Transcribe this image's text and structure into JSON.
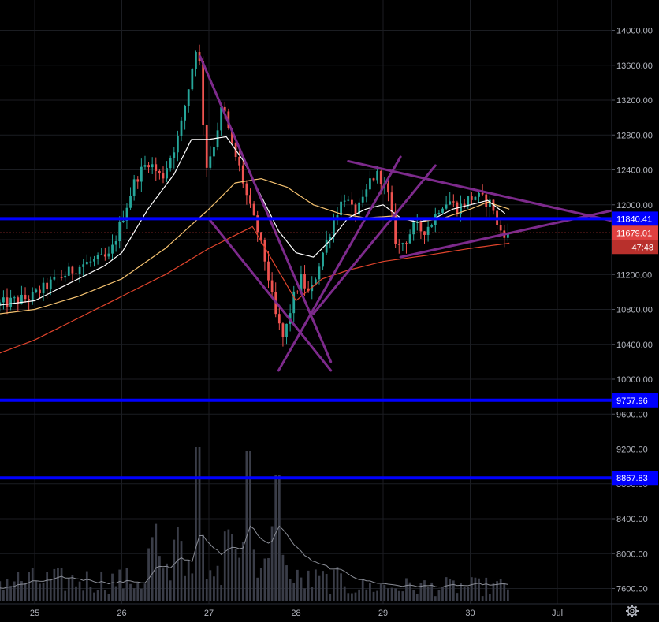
{
  "colors": {
    "background": "#000000",
    "grid": "#1b1d22",
    "candle_up": "#26a69a",
    "candle_down": "#ef5350",
    "sma_fast": "#ffffff",
    "sma_mid": "#f5c270",
    "sma_slow": "#e0442c",
    "hline": "#0000ff",
    "trend": "#7d2a8c",
    "volume": "#3a3d48",
    "volume_ma": "#8a8d96",
    "current_price_tag": "#e04040",
    "countdown_tag": "#b8302c"
  },
  "chart_data": {
    "type": "candlestick",
    "ylim": [
      7500,
      14300
    ],
    "y_ticks": [
      "7600.00",
      "8000.00",
      "8400.00",
      "8800.00",
      "9200.00",
      "9600.00",
      "10000.00",
      "10400.00",
      "10800.00",
      "11200.00",
      "11600.00",
      "12000.00",
      "12400.00",
      "12800.00",
      "13200.00",
      "13600.00",
      "14000.00"
    ],
    "x_ticks": [
      {
        "label": "25",
        "day": 25
      },
      {
        "label": "26",
        "day": 26
      },
      {
        "label": "27",
        "day": 27
      },
      {
        "label": "28",
        "day": 28
      },
      {
        "label": "29",
        "day": 29
      },
      {
        "label": "30",
        "day": 30
      },
      {
        "label": "Jul",
        "day": 31
      }
    ],
    "price_path": [
      [
        24.6,
        10850
      ],
      [
        25.0,
        10940
      ],
      [
        25.3,
        11150
      ],
      [
        25.6,
        11320
      ],
      [
        25.9,
        11400
      ],
      [
        26.0,
        11700
      ],
      [
        26.2,
        12300
      ],
      [
        26.35,
        12500
      ],
      [
        26.5,
        12300
      ],
      [
        26.6,
        12550
      ],
      [
        26.7,
        12800
      ],
      [
        26.8,
        13300
      ],
      [
        26.9,
        13850
      ],
      [
        26.95,
        13500
      ],
      [
        27.0,
        12400
      ],
      [
        27.1,
        12700
      ],
      [
        27.2,
        13150
      ],
      [
        27.3,
        12700
      ],
      [
        27.4,
        12400
      ],
      [
        27.5,
        12000
      ],
      [
        27.6,
        11700
      ],
      [
        27.7,
        11300
      ],
      [
        27.8,
        10750
      ],
      [
        27.9,
        10450
      ],
      [
        28.0,
        10900
      ],
      [
        28.1,
        11150
      ],
      [
        28.2,
        10950
      ],
      [
        28.3,
        11300
      ],
      [
        28.4,
        11600
      ],
      [
        28.5,
        11900
      ],
      [
        28.6,
        12100
      ],
      [
        28.7,
        11900
      ],
      [
        28.8,
        12000
      ],
      [
        28.9,
        12300
      ],
      [
        29.0,
        12350
      ],
      [
        29.1,
        12100
      ],
      [
        29.2,
        11500
      ],
      [
        29.3,
        11600
      ],
      [
        29.4,
        11750
      ],
      [
        29.5,
        11700
      ],
      [
        29.6,
        11800
      ],
      [
        29.7,
        12000
      ],
      [
        29.8,
        12050
      ],
      [
        29.9,
        11950
      ],
      [
        30.0,
        12050
      ],
      [
        30.1,
        12100
      ],
      [
        30.2,
        12050
      ],
      [
        30.3,
        12000
      ],
      [
        30.35,
        11750
      ],
      [
        30.4,
        11700
      ],
      [
        30.45,
        11679
      ]
    ],
    "sma_fast_path": [
      [
        24.6,
        10850
      ],
      [
        25.0,
        10900
      ],
      [
        25.4,
        11100
      ],
      [
        25.8,
        11300
      ],
      [
        26.0,
        11450
      ],
      [
        26.3,
        11950
      ],
      [
        26.6,
        12350
      ],
      [
        26.8,
        12750
      ],
      [
        27.0,
        12750
      ],
      [
        27.2,
        12780
      ],
      [
        27.4,
        12500
      ],
      [
        27.6,
        12100
      ],
      [
        27.8,
        11700
      ],
      [
        28.0,
        11450
      ],
      [
        28.2,
        11400
      ],
      [
        28.4,
        11600
      ],
      [
        28.6,
        11850
      ],
      [
        28.8,
        11950
      ],
      [
        29.0,
        12000
      ],
      [
        29.2,
        11850
      ],
      [
        29.4,
        11800
      ],
      [
        29.6,
        11850
      ],
      [
        29.8,
        11950
      ],
      [
        30.0,
        12000
      ],
      [
        30.2,
        12050
      ],
      [
        30.4,
        11900
      ]
    ],
    "sma_mid_path": [
      [
        24.6,
        10750
      ],
      [
        25.0,
        10800
      ],
      [
        25.5,
        10950
      ],
      [
        26.0,
        11150
      ],
      [
        26.5,
        11500
      ],
      [
        27.0,
        11950
      ],
      [
        27.3,
        12250
      ],
      [
        27.6,
        12300
      ],
      [
        27.9,
        12200
      ],
      [
        28.2,
        12000
      ],
      [
        28.5,
        11900
      ],
      [
        28.8,
        11850
      ],
      [
        29.1,
        11870
      ],
      [
        29.4,
        11800
      ],
      [
        29.7,
        11850
      ],
      [
        30.0,
        11950
      ],
      [
        30.2,
        12030
      ],
      [
        30.45,
        11950
      ]
    ],
    "sma_slow_path": [
      [
        24.6,
        10300
      ],
      [
        25.0,
        10450
      ],
      [
        25.5,
        10700
      ],
      [
        26.0,
        10950
      ],
      [
        26.5,
        11200
      ],
      [
        27.0,
        11500
      ],
      [
        27.5,
        11750
      ],
      [
        28.0,
        10900
      ],
      [
        28.3,
        11150
      ],
      [
        28.6,
        11250
      ],
      [
        29.0,
        11350
      ],
      [
        29.5,
        11420
      ],
      [
        30.0,
        11500
      ],
      [
        30.45,
        11560
      ]
    ],
    "trend_lines": [
      [
        [
          26.9,
          13700
        ],
        [
          28.4,
          10200
        ]
      ],
      [
        [
          27.0,
          11840
        ],
        [
          28.4,
          10100
        ]
      ],
      [
        [
          27.8,
          10100
        ],
        [
          29.2,
          12550
        ]
      ],
      [
        [
          28.2,
          10750
        ],
        [
          29.6,
          12450
        ]
      ],
      [
        [
          28.6,
          12500
        ],
        [
          31.7,
          11800
        ]
      ],
      [
        [
          29.2,
          11400
        ],
        [
          31.7,
          11950
        ]
      ]
    ],
    "horizontal_levels": [
      {
        "price": 11840.41,
        "label": "11840.41"
      },
      {
        "price": 9757.96,
        "label": "9757.96"
      },
      {
        "price": 8867.83,
        "label": "8867.83"
      }
    ],
    "current_price": {
      "price": 11679.01,
      "label": "11679.01"
    },
    "countdown": {
      "label": "47:48"
    }
  },
  "ui": {
    "settings_icon": "gear-icon"
  }
}
